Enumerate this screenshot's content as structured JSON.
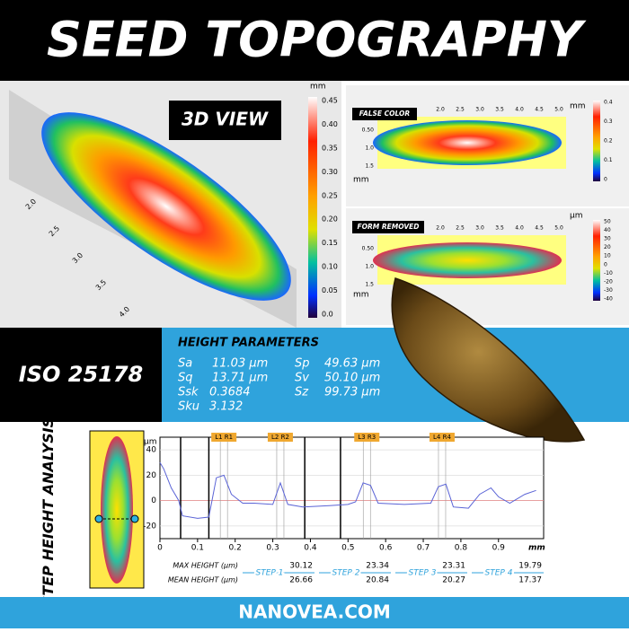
{
  "header": {
    "title": "SEED TOPOGRAPHY"
  },
  "view_3d": {
    "label": "3D VIEW",
    "unit": "mm",
    "colorbar_ticks": [
      "0.45",
      "0.40",
      "0.35",
      "0.30",
      "0.25",
      "0.20",
      "0.15",
      "0.10",
      "0.05",
      "0.0"
    ],
    "axis_ticks": [
      "2.0",
      "2.5",
      "3.0",
      "3.5",
      "4.0"
    ]
  },
  "false_color": {
    "label": "FALSE COLOR",
    "unit": "mm",
    "x_unit": "mm",
    "x_ticks": [
      "2.0",
      "2.5",
      "3.0",
      "3.5",
      "4.0",
      "4.5",
      "5.0"
    ],
    "y_ticks": [
      "0.50",
      "1.0",
      "1.5"
    ],
    "colorbar_ticks": [
      "0.4",
      "0.3",
      "0.2",
      "0.1",
      "0"
    ]
  },
  "form_removed": {
    "label": "FORM REMOVED",
    "unit": "µm",
    "x_unit": "mm",
    "x_ticks": [
      "2.0",
      "2.5",
      "3.0",
      "3.5",
      "4.0",
      "4.5",
      "5.0"
    ],
    "y_ticks": [
      "0.50",
      "1.0",
      "1.5"
    ],
    "colorbar_ticks": [
      "50",
      "40",
      "30",
      "20",
      "10",
      "0",
      "-10",
      "-20",
      "-30",
      "-40"
    ]
  },
  "iso": {
    "label": "ISO 25178"
  },
  "height_parameters": {
    "title": "HEIGHT PARAMETERS",
    "left": [
      [
        "Sa",
        "11.03 µm"
      ],
      [
        "Sq",
        "13.71 µm"
      ],
      [
        "Ssk",
        "0.3684"
      ],
      [
        "Sku",
        "3.132"
      ]
    ],
    "right": [
      [
        "Sp",
        "49.63 µm"
      ],
      [
        "Sv",
        "50.10 µm"
      ],
      [
        "Sz",
        "99.73 µm"
      ]
    ]
  },
  "step_height": {
    "title": "STEP HEIGHT ANALYSIS",
    "chart": {
      "type": "line",
      "y_unit": "µm",
      "x_unit": "mm",
      "color": "#5a63d6",
      "x": [
        0,
        0.01,
        0.03,
        0.05,
        0.06,
        0.1,
        0.13,
        0.15,
        0.17,
        0.19,
        0.22,
        0.25,
        0.3,
        0.32,
        0.34,
        0.38,
        0.45,
        0.5,
        0.52,
        0.54,
        0.56,
        0.58,
        0.65,
        0.72,
        0.74,
        0.76,
        0.78,
        0.82,
        0.85,
        0.88,
        0.9,
        0.93,
        0.97,
        1.0
      ],
      "y": [
        30,
        25,
        10,
        0,
        -12,
        -14,
        -13,
        18,
        20,
        5,
        -2,
        -2,
        -3,
        14,
        -3,
        -5,
        -4,
        -3,
        -1,
        14,
        12,
        -2,
        -3,
        -2,
        11,
        13,
        -5,
        -6,
        5,
        10,
        3,
        -2,
        5,
        8
      ],
      "xlim": [
        0,
        1.02
      ],
      "ylim": [
        -30,
        50
      ],
      "xticks": [
        0,
        0.1,
        0.2,
        0.3,
        0.4,
        0.5,
        0.6,
        0.7,
        0.8,
        0.9
      ],
      "yticks": [
        40,
        20,
        0,
        -20
      ],
      "cursors": [
        0.055,
        0.13,
        0.385,
        0.48
      ],
      "markers": [
        {
          "label": "L1 R1",
          "x": 0.17
        },
        {
          "label": "L2 R2",
          "x": 0.32
        },
        {
          "label": "L3 R3",
          "x": 0.55
        },
        {
          "label": "L4 R4",
          "x": 0.75
        }
      ]
    },
    "table": {
      "row_labels": [
        "MAX HEIGHT (µm)",
        "MEAN HEIGHT (µm)"
      ],
      "steps": [
        {
          "label": "STEP 1",
          "max": "30.12",
          "mean": "26.66"
        },
        {
          "label": "STEP 2",
          "max": "23.34",
          "mean": "20.84"
        },
        {
          "label": "STEP 3",
          "max": "23.31",
          "mean": "20.27"
        },
        {
          "label": "STEP 4",
          "max": "19.79",
          "mean": "17.37"
        }
      ]
    }
  },
  "footer": {
    "text": "NANOVEA.COM"
  }
}
